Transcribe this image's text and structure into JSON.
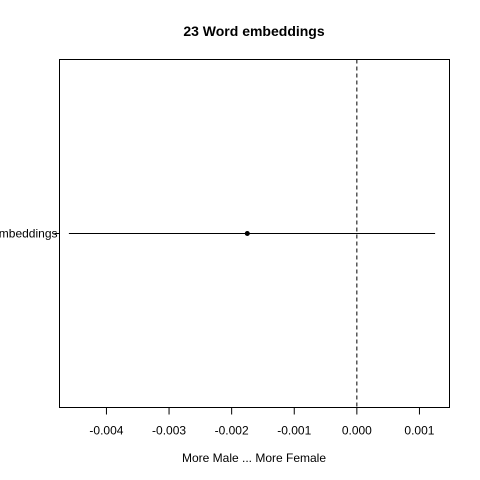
{
  "chart_data": {
    "type": "scatter",
    "title": "23 Word embeddings",
    "xlabel": "More Male ... More Female",
    "ylabel": "",
    "xlim": [
      -0.00475,
      0.00148
    ],
    "x_ticks": [
      -0.004,
      -0.003,
      -0.002,
      -0.001,
      0.0,
      0.001
    ],
    "x_tick_labels": [
      "-0.004",
      "-0.003",
      "-0.002",
      "-0.001",
      "0.000",
      "0.001"
    ],
    "reference_line": {
      "x": 0.0,
      "style": "dashed"
    },
    "grid": false,
    "legend": "none",
    "points": [
      {
        "label": "Word embeddings",
        "visible_label": "mbeddings",
        "estimate": -0.00175,
        "ci_low": -0.0046,
        "ci_high": 0.00125
      }
    ],
    "colors": {
      "line": "#000000",
      "point": "#000000"
    }
  }
}
